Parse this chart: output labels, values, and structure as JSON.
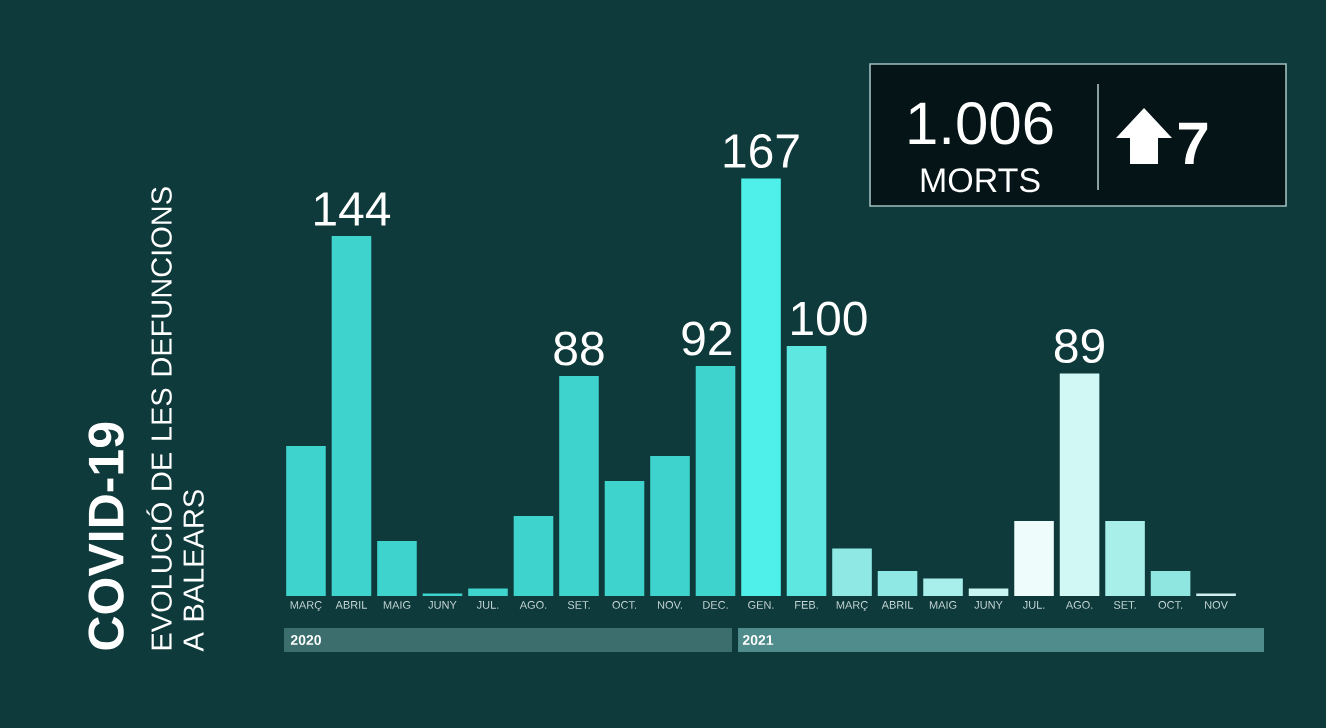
{
  "chart_data": {
    "type": "bar",
    "title": "COVID-19",
    "subtitle": "EVOLUCIÓ DE LES DEFUNCIONS A BALEARS",
    "categories": [
      "MARÇ",
      "ABRIL",
      "MAIG",
      "JUNY",
      "JUL.",
      "AGO.",
      "SET.",
      "OCT.",
      "NOV.",
      "DEC.",
      "GEN.",
      "FEB.",
      "MARÇ",
      "ABRIL",
      "MAIG",
      "JUNY",
      "JUL.",
      "AGO.",
      "SET.",
      "OCT.",
      "NOV"
    ],
    "values": [
      60,
      144,
      22,
      1,
      3,
      32,
      88,
      46,
      56,
      92,
      167,
      100,
      19,
      10,
      7,
      3,
      30,
      89,
      30,
      10,
      1
    ],
    "value_labels": [
      null,
      "144",
      null,
      null,
      null,
      null,
      "88",
      null,
      null,
      "92",
      "167",
      "100",
      null,
      null,
      null,
      null,
      null,
      "89",
      null,
      null,
      null
    ],
    "colors": [
      "#3fd3cd",
      "#3fd3cd",
      "#3fd3cd",
      "#3fd3cd",
      "#3fd3cd",
      "#3fd3cd",
      "#3fd3cd",
      "#3fd3cd",
      "#3fd3cd",
      "#3fd3cd",
      "#4ff0ea",
      "#5ee6e0",
      "#8fe8e3",
      "#8fe8e3",
      "#a8eeea",
      "#c8f4f1",
      "#eefcfb",
      "#d2f8f5",
      "#a8eee9",
      "#8fe5e0",
      "#d0f0ef"
    ],
    "annotations": [
      "1.006",
      "MORTS",
      "7",
      "2020",
      "2021"
    ]
  }
}
